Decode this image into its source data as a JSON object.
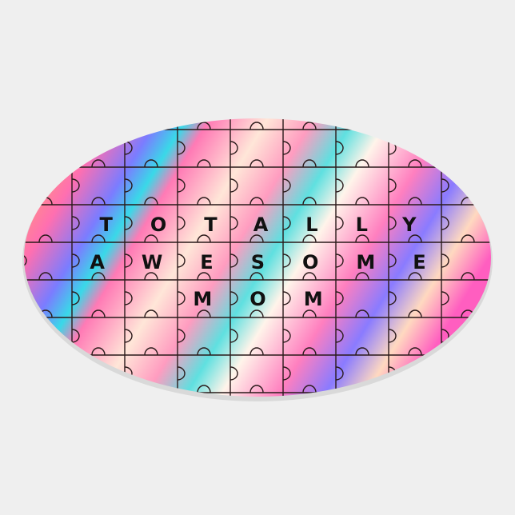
{
  "sticker": {
    "shape": "oval",
    "pattern": "jigsaw-puzzle-grid",
    "background_colors": [
      "#ff6fa8",
      "#ffa36b",
      "#7a7bff",
      "#39d9e8",
      "#fff3e8",
      "#ff4fc0"
    ],
    "text_lines": [
      "TOTALLY",
      "AWESOME",
      "MOM"
    ],
    "text_color": "#111111"
  },
  "page_background": "#efefef"
}
